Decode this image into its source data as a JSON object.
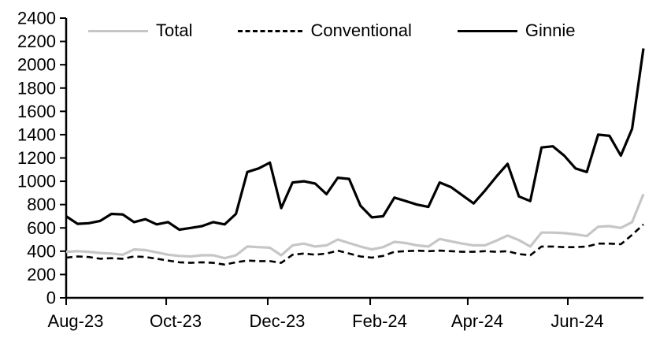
{
  "chart_data": {
    "type": "line",
    "title": "",
    "xlabel": "",
    "ylabel": "",
    "x_unit": "weekly",
    "ylim": [
      0,
      2400
    ],
    "y_tick_step": 200,
    "y_ticks": [
      0,
      200,
      400,
      600,
      800,
      1000,
      1200,
      1400,
      1600,
      1800,
      2000,
      2200,
      2400
    ],
    "x_ticks": [
      {
        "label": "Aug-23",
        "week": 0
      },
      {
        "label": "Oct-23",
        "week": 8.84
      },
      {
        "label": "Dec-23",
        "week": 17.81
      },
      {
        "label": "Feb-24",
        "week": 26.86
      },
      {
        "label": "Apr-24",
        "week": 35.48
      },
      {
        "label": "Jun-24",
        "week": 44.32
      }
    ],
    "grid": false,
    "legend_position": "top",
    "series": [
      {
        "name": "Total",
        "color": "#c6c6c6",
        "style": "solid",
        "values": [
          395,
          400,
          395,
          385,
          380,
          370,
          415,
          410,
          390,
          370,
          360,
          355,
          365,
          365,
          340,
          365,
          440,
          435,
          430,
          365,
          450,
          465,
          440,
          450,
          500,
          470,
          440,
          415,
          435,
          480,
          470,
          450,
          440,
          505,
          485,
          465,
          450,
          450,
          490,
          535,
          495,
          440,
          560,
          560,
          555,
          545,
          530,
          610,
          615,
          600,
          650,
          890
        ]
      },
      {
        "name": "Conventional",
        "color": "#000000",
        "style": "dashed",
        "values": [
          345,
          355,
          350,
          335,
          340,
          335,
          355,
          350,
          335,
          320,
          305,
          300,
          305,
          300,
          285,
          305,
          320,
          315,
          315,
          300,
          370,
          380,
          370,
          380,
          405,
          380,
          355,
          345,
          360,
          395,
          400,
          405,
          400,
          405,
          400,
          395,
          395,
          400,
          395,
          400,
          375,
          365,
          440,
          440,
          435,
          435,
          440,
          465,
          465,
          460,
          540,
          630
        ]
      },
      {
        "name": "Ginnie",
        "color": "#000000",
        "style": "solid",
        "values": [
          700,
          635,
          640,
          660,
          720,
          715,
          650,
          675,
          630,
          650,
          585,
          600,
          615,
          650,
          630,
          720,
          1080,
          1110,
          1160,
          770,
          990,
          1000,
          980,
          890,
          1030,
          1020,
          790,
          690,
          700,
          860,
          830,
          800,
          780,
          990,
          950,
          880,
          810,
          920,
          1040,
          1150,
          870,
          830,
          1290,
          1300,
          1220,
          1110,
          1080,
          1400,
          1390,
          1220,
          1450,
          2140
        ]
      }
    ]
  },
  "legend": {
    "total_label": "Total",
    "conventional_label": "Conventional",
    "ginnie_label": "Ginnie"
  },
  "colors": {
    "axis": "#000000",
    "total_line": "#c6c6c6",
    "black_line": "#000000",
    "background": "#ffffff"
  }
}
